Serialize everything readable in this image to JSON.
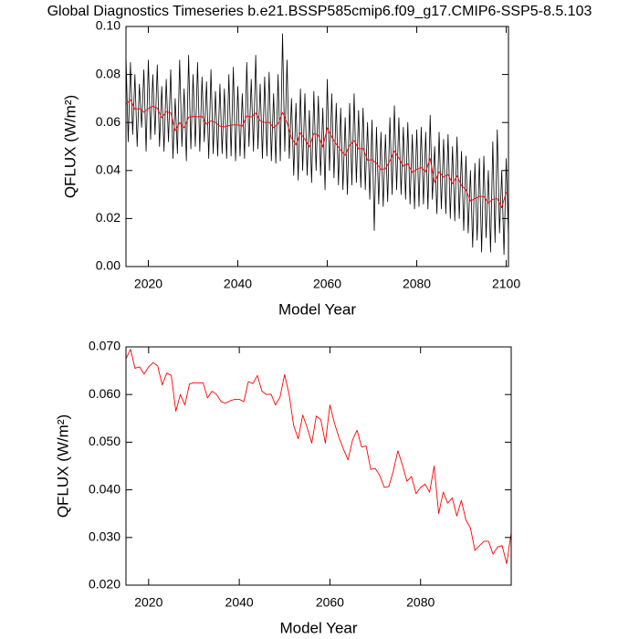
{
  "chart_data": [
    {
      "type": "line",
      "title": "Global Diagnostics Timeseries b.e21.BSSP585cmip6.f09_g17.CMIP6-SSP5-8.5.103",
      "xlabel": "Model Year",
      "ylabel": "QFLUX (W/m²)",
      "xlim": [
        2015,
        2100.5
      ],
      "xticks": [
        2020,
        2040,
        2060,
        2080,
        2100
      ],
      "ylim": [
        0,
        0.1
      ],
      "yticks": [
        {
          "value": 0,
          "label": "0.00"
        },
        {
          "value": 0.02,
          "label": "0.02"
        },
        {
          "value": 0.04,
          "label": "0.04"
        },
        {
          "value": 0.06,
          "label": "0.06"
        },
        {
          "value": 0.08,
          "label": "0.08"
        },
        {
          "value": 0.1,
          "label": "0.10"
        }
      ],
      "series": [
        {
          "color": "#000000",
          "x": [
            2015,
            2015.5,
            2016,
            2016.5,
            2017,
            2017.5,
            2018,
            2018.5,
            2019,
            2019.5,
            2020,
            2020.5,
            2021,
            2021.5,
            2022,
            2022.5,
            2023,
            2023.5,
            2024,
            2024.5,
            2025,
            2025.5,
            2026,
            2026.5,
            2027,
            2027.5,
            2028,
            2028.5,
            2029,
            2029.5,
            2030,
            2030.5,
            2031,
            2031.5,
            2032,
            2032.5,
            2033,
            2033.5,
            2034,
            2034.5,
            2035,
            2035.5,
            2036,
            2036.5,
            2037,
            2037.5,
            2038,
            2038.5,
            2039,
            2039.5,
            2040,
            2040.5,
            2041,
            2041.5,
            2042,
            2042.5,
            2043,
            2043.5,
            2044,
            2044.5,
            2045,
            2045.5,
            2046,
            2046.5,
            2047,
            2047.5,
            2048,
            2048.5,
            2049,
            2049.5,
            2050,
            2050.5,
            2051,
            2051.5,
            2052,
            2052.5,
            2053,
            2053.5,
            2054,
            2054.5,
            2055,
            2055.5,
            2056,
            2056.5,
            2057,
            2057.5,
            2058,
            2058.5,
            2059,
            2059.5,
            2060,
            2060.5,
            2061,
            2061.5,
            2062,
            2062.5,
            2063,
            2063.5,
            2064,
            2064.5,
            2065,
            2065.5,
            2066,
            2066.5,
            2067,
            2067.5,
            2068,
            2068.5,
            2069,
            2069.5,
            2070,
            2070.5,
            2071,
            2071.5,
            2072,
            2072.5,
            2073,
            2073.5,
            2074,
            2074.5,
            2075,
            2075.5,
            2076,
            2076.5,
            2077,
            2077.5,
            2078,
            2078.5,
            2079,
            2079.5,
            2080,
            2080.5,
            2081,
            2081.5,
            2082,
            2082.5,
            2083,
            2083.5,
            2084,
            2084.5,
            2085,
            2085.5,
            2086,
            2086.5,
            2087,
            2087.5,
            2088,
            2088.5,
            2089,
            2089.5,
            2090,
            2090.5,
            2091,
            2091.5,
            2092,
            2092.5,
            2093,
            2093.5,
            2094,
            2094.5,
            2095,
            2095.5,
            2096,
            2096.5,
            2097,
            2097.5,
            2098,
            2098.5,
            2099,
            2099.5,
            2100,
            2100.5
          ],
          "values": [
            0.088,
            0.052,
            0.085,
            0.055,
            0.08,
            0.05,
            0.076,
            0.058,
            0.082,
            0.048,
            0.086,
            0.053,
            0.08,
            0.055,
            0.084,
            0.05,
            0.075,
            0.048,
            0.078,
            0.052,
            0.082,
            0.045,
            0.07,
            0.047,
            0.086,
            0.05,
            0.074,
            0.044,
            0.088,
            0.049,
            0.08,
            0.05,
            0.085,
            0.048,
            0.079,
            0.052,
            0.077,
            0.045,
            0.082,
            0.047,
            0.073,
            0.046,
            0.076,
            0.047,
            0.074,
            0.045,
            0.08,
            0.046,
            0.083,
            0.044,
            0.075,
            0.046,
            0.072,
            0.045,
            0.085,
            0.05,
            0.078,
            0.048,
            0.088,
            0.049,
            0.076,
            0.045,
            0.079,
            0.046,
            0.081,
            0.044,
            0.072,
            0.043,
            0.08,
            0.044,
            0.097,
            0.048,
            0.086,
            0.045,
            0.07,
            0.038,
            0.068,
            0.036,
            0.074,
            0.04,
            0.072,
            0.038,
            0.065,
            0.035,
            0.073,
            0.04,
            0.071,
            0.038,
            0.066,
            0.032,
            0.078,
            0.04,
            0.072,
            0.037,
            0.068,
            0.034,
            0.066,
            0.032,
            0.062,
            0.03,
            0.068,
            0.034,
            0.072,
            0.035,
            0.065,
            0.033,
            0.066,
            0.032,
            0.06,
            0.028,
            0.061,
            0.015,
            0.058,
            0.026,
            0.056,
            0.025,
            0.055,
            0.027,
            0.062,
            0.03,
            0.067,
            0.032,
            0.062,
            0.03,
            0.058,
            0.028,
            0.06,
            0.026,
            0.055,
            0.024,
            0.057,
            0.025,
            0.058,
            0.026,
            0.056,
            0.024,
            0.063,
            0.028,
            0.05,
            0.022,
            0.056,
            0.024,
            0.053,
            0.022,
            0.055,
            0.02,
            0.05,
            0.019,
            0.054,
            0.02,
            0.048,
            0.015,
            0.046,
            0.014,
            0.04,
            0.008,
            0.043,
            0.011,
            0.045,
            0.006,
            0.046,
            0.012,
            0.04,
            0.006,
            0.052,
            0.01,
            0.057,
            0.014,
            0.04,
            0.005,
            0.045,
            0.012
          ]
        },
        {
          "color": "#ff0000",
          "x": [
            2015,
            2016,
            2017,
            2018,
            2019,
            2020,
            2021,
            2022,
            2023,
            2024,
            2025,
            2026,
            2027,
            2028,
            2029,
            2030,
            2031,
            2032,
            2033,
            2034,
            2035,
            2036,
            2037,
            2038,
            2039,
            2040,
            2041,
            2042,
            2043,
            2044,
            2045,
            2046,
            2047,
            2048,
            2049,
            2050,
            2051,
            2052,
            2053,
            2054,
            2055,
            2056,
            2057,
            2058,
            2059,
            2060,
            2061,
            2062,
            2063,
            2064,
            2065,
            2066,
            2067,
            2068,
            2069,
            2070,
            2071,
            2072,
            2073,
            2074,
            2075,
            2076,
            2077,
            2078,
            2079,
            2080,
            2081,
            2082,
            2083,
            2084,
            2085,
            2086,
            2087,
            2088,
            2089,
            2090,
            2091,
            2092,
            2093,
            2094,
            2095,
            2096,
            2097,
            2098,
            2099,
            2100
          ],
          "values": [
            0.0675,
            0.0695,
            0.0655,
            0.0658,
            0.0643,
            0.0658,
            0.0667,
            0.066,
            0.062,
            0.0645,
            0.064,
            0.0565,
            0.06,
            0.0578,
            0.0622,
            0.0625,
            0.0624,
            0.0625,
            0.0593,
            0.0607,
            0.06,
            0.0585,
            0.0582,
            0.0587,
            0.059,
            0.059,
            0.0585,
            0.0627,
            0.0623,
            0.064,
            0.0607,
            0.06,
            0.0601,
            0.0578,
            0.0595,
            0.0642,
            0.06,
            0.0535,
            0.0507,
            0.0557,
            0.053,
            0.0498,
            0.0555,
            0.0547,
            0.0498,
            0.0578,
            0.054,
            0.051,
            0.0485,
            0.0463,
            0.0505,
            0.0525,
            0.049,
            0.0492,
            0.0443,
            0.0445,
            0.043,
            0.0405,
            0.0407,
            0.044,
            0.0482,
            0.0452,
            0.0418,
            0.0428,
            0.0392,
            0.0405,
            0.0412,
            0.0395,
            0.045,
            0.035,
            0.0395,
            0.0372,
            0.0383,
            0.0345,
            0.0378,
            0.0337,
            0.032,
            0.0273,
            0.0283,
            0.0292,
            0.0292,
            0.0265,
            0.028,
            0.0283,
            0.0245,
            0.031
          ]
        }
      ]
    },
    {
      "type": "line",
      "xlabel": "Model Year",
      "ylabel": "QFLUX (W/m²)",
      "xlim": [
        2015,
        2100
      ],
      "xticks": [
        2020,
        2040,
        2060,
        2080
      ],
      "ylim": [
        0.02,
        0.07
      ],
      "yticks": [
        {
          "value": 0.02,
          "label": "0.020"
        },
        {
          "value": 0.03,
          "label": "0.030"
        },
        {
          "value": 0.04,
          "label": "0.040"
        },
        {
          "value": 0.05,
          "label": "0.050"
        },
        {
          "value": 0.06,
          "label": "0.060"
        },
        {
          "value": 0.07,
          "label": "0.070"
        }
      ],
      "series": [
        {
          "color": "#ff0000",
          "x": [
            2015,
            2016,
            2017,
            2018,
            2019,
            2020,
            2021,
            2022,
            2023,
            2024,
            2025,
            2026,
            2027,
            2028,
            2029,
            2030,
            2031,
            2032,
            2033,
            2034,
            2035,
            2036,
            2037,
            2038,
            2039,
            2040,
            2041,
            2042,
            2043,
            2044,
            2045,
            2046,
            2047,
            2048,
            2049,
            2050,
            2051,
            2052,
            2053,
            2054,
            2055,
            2056,
            2057,
            2058,
            2059,
            2060,
            2061,
            2062,
            2063,
            2064,
            2065,
            2066,
            2067,
            2068,
            2069,
            2070,
            2071,
            2072,
            2073,
            2074,
            2075,
            2076,
            2077,
            2078,
            2079,
            2080,
            2081,
            2082,
            2083,
            2084,
            2085,
            2086,
            2087,
            2088,
            2089,
            2090,
            2091,
            2092,
            2093,
            2094,
            2095,
            2096,
            2097,
            2098,
            2099,
            2100
          ],
          "values": [
            0.0675,
            0.0695,
            0.0655,
            0.0658,
            0.0643,
            0.0658,
            0.0667,
            0.066,
            0.062,
            0.0645,
            0.064,
            0.0565,
            0.06,
            0.0578,
            0.0622,
            0.0625,
            0.0624,
            0.0625,
            0.0593,
            0.0607,
            0.06,
            0.0585,
            0.0582,
            0.0587,
            0.059,
            0.059,
            0.0585,
            0.0627,
            0.0623,
            0.064,
            0.0607,
            0.06,
            0.0601,
            0.0578,
            0.0595,
            0.0642,
            0.06,
            0.0535,
            0.0507,
            0.0557,
            0.053,
            0.0498,
            0.0555,
            0.0547,
            0.0498,
            0.0578,
            0.054,
            0.051,
            0.0485,
            0.0463,
            0.0505,
            0.0525,
            0.049,
            0.0492,
            0.0443,
            0.0445,
            0.043,
            0.0405,
            0.0407,
            0.044,
            0.0482,
            0.0452,
            0.0418,
            0.0428,
            0.0392,
            0.0405,
            0.0412,
            0.0395,
            0.045,
            0.035,
            0.0395,
            0.0372,
            0.0383,
            0.0345,
            0.0378,
            0.0337,
            0.032,
            0.0273,
            0.0283,
            0.0292,
            0.0292,
            0.0265,
            0.028,
            0.0283,
            0.0245,
            0.031
          ]
        }
      ]
    }
  ]
}
